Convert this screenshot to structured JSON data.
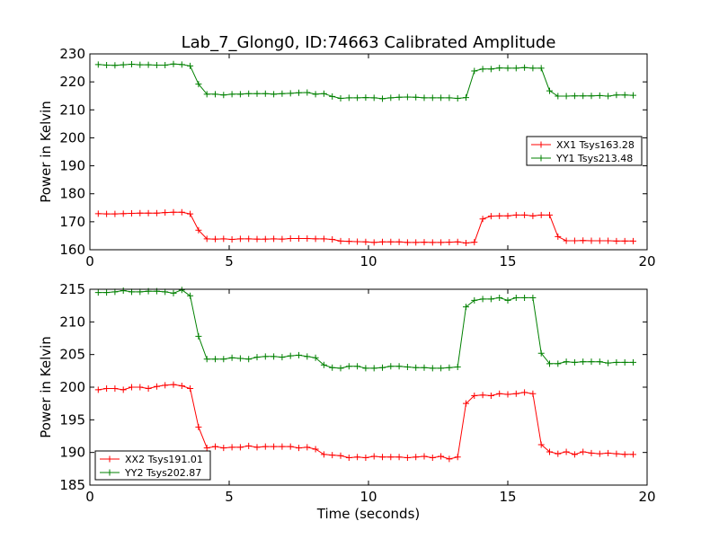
{
  "chart_data": {
    "type": "line",
    "title": "Lab_7_Glong0, ID:74663 Calibrated Amplitude",
    "colors": {
      "red": "#ff0000",
      "green": "#008000"
    },
    "panels": [
      {
        "ylabel": "Power in Kelvin",
        "xlabel": "",
        "xlim": [
          0,
          20
        ],
        "ylim": [
          160,
          230
        ],
        "xticks": [
          0,
          5,
          10,
          15,
          20
        ],
        "yticks": [
          160,
          170,
          180,
          190,
          200,
          210,
          220,
          230
        ],
        "legend_position": "center-right",
        "series": [
          {
            "name": "XX1 Tsys163.28",
            "color": "#ff0000",
            "x": [
              0.3,
              0.6,
              0.9,
              1.2,
              1.5,
              1.8,
              2.1,
              2.4,
              2.7,
              3.0,
              3.3,
              3.6,
              3.9,
              4.2,
              4.5,
              4.8,
              5.1,
              5.4,
              5.7,
              6.0,
              6.3,
              6.6,
              6.9,
              7.2,
              7.5,
              7.8,
              8.1,
              8.4,
              8.7,
              9.0,
              9.3,
              9.6,
              9.9,
              10.2,
              10.5,
              10.8,
              11.1,
              11.4,
              11.7,
              12.0,
              12.3,
              12.6,
              12.9,
              13.2,
              13.5,
              13.8,
              14.1,
              14.4,
              14.7,
              15.0,
              15.3,
              15.6,
              15.9,
              16.2,
              16.5,
              16.8,
              17.1,
              17.4,
              17.7,
              18.0,
              18.3,
              18.6,
              18.9,
              19.2,
              19.5
            ],
            "y": [
              172.9,
              172.8,
              172.8,
              172.9,
              173.0,
              173.1,
              173.1,
              173.1,
              173.3,
              173.4,
              173.4,
              172.8,
              167.0,
              163.9,
              163.8,
              163.9,
              163.7,
              163.9,
              163.9,
              163.8,
              163.8,
              163.9,
              163.8,
              164.0,
              164.0,
              164.0,
              163.9,
              163.9,
              163.7,
              163.1,
              163.0,
              162.9,
              162.8,
              162.6,
              162.8,
              162.8,
              162.8,
              162.6,
              162.6,
              162.7,
              162.6,
              162.6,
              162.7,
              162.8,
              162.4,
              162.7,
              171.0,
              172.0,
              172.1,
              172.1,
              172.4,
              172.4,
              172.1,
              172.4,
              172.4,
              164.7,
              163.2,
              163.2,
              163.3,
              163.2,
              163.2,
              163.2,
              163.1,
              163.1,
              163.1
            ]
          },
          {
            "name": "YY1 Tsys213.48",
            "color": "#008000",
            "x": [
              0.3,
              0.6,
              0.9,
              1.2,
              1.5,
              1.8,
              2.1,
              2.4,
              2.7,
              3.0,
              3.3,
              3.6,
              3.9,
              4.2,
              4.5,
              4.8,
              5.1,
              5.4,
              5.7,
              6.0,
              6.3,
              6.6,
              6.9,
              7.2,
              7.5,
              7.8,
              8.1,
              8.4,
              8.7,
              9.0,
              9.3,
              9.6,
              9.9,
              10.2,
              10.5,
              10.8,
              11.1,
              11.4,
              11.7,
              12.0,
              12.3,
              12.6,
              12.9,
              13.2,
              13.5,
              13.8,
              14.1,
              14.4,
              14.7,
              15.0,
              15.3,
              15.6,
              15.9,
              16.2,
              16.5,
              16.8,
              17.1,
              17.4,
              17.7,
              18.0,
              18.3,
              18.6,
              18.9,
              19.2,
              19.5
            ],
            "y": [
              226.2,
              226.0,
              225.9,
              226.1,
              226.3,
              226.1,
              226.1,
              226.0,
              226.0,
              226.4,
              226.2,
              225.7,
              219.2,
              215.6,
              215.6,
              215.3,
              215.6,
              215.6,
              215.8,
              215.8,
              215.8,
              215.6,
              215.8,
              215.9,
              216.1,
              216.2,
              215.6,
              215.8,
              214.8,
              214.1,
              214.3,
              214.3,
              214.4,
              214.3,
              214.0,
              214.3,
              214.5,
              214.6,
              214.5,
              214.3,
              214.3,
              214.3,
              214.3,
              214.1,
              214.4,
              223.9,
              224.6,
              224.6,
              225.0,
              224.9,
              224.9,
              225.1,
              224.9,
              224.9,
              216.8,
              214.9,
              214.9,
              215.0,
              215.0,
              215.0,
              215.1,
              214.9,
              215.3,
              215.3,
              215.2
            ]
          }
        ]
      },
      {
        "ylabel": "Power in Kelvin",
        "xlabel": "Time (seconds)",
        "xlim": [
          0,
          20
        ],
        "ylim": [
          185,
          215
        ],
        "xticks": [
          0,
          5,
          10,
          15,
          20
        ],
        "yticks": [
          185,
          190,
          195,
          200,
          205,
          210,
          215
        ],
        "legend_position": "lower-left",
        "series": [
          {
            "name": "XX2 Tsys191.01",
            "color": "#ff0000",
            "x": [
              0.3,
              0.6,
              0.9,
              1.2,
              1.5,
              1.8,
              2.1,
              2.4,
              2.7,
              3.0,
              3.3,
              3.6,
              3.9,
              4.2,
              4.5,
              4.8,
              5.1,
              5.4,
              5.7,
              6.0,
              6.3,
              6.6,
              6.9,
              7.2,
              7.5,
              7.8,
              8.1,
              8.4,
              8.7,
              9.0,
              9.3,
              9.6,
              9.9,
              10.2,
              10.5,
              10.8,
              11.1,
              11.4,
              11.7,
              12.0,
              12.3,
              12.6,
              12.9,
              13.2,
              13.5,
              13.8,
              14.1,
              14.4,
              14.7,
              15.0,
              15.3,
              15.6,
              15.9,
              16.2,
              16.5,
              16.8,
              17.1,
              17.4,
              17.7,
              18.0,
              18.3,
              18.6,
              18.9,
              19.2,
              19.5
            ],
            "y": [
              199.6,
              199.8,
              199.8,
              199.6,
              200.0,
              200.0,
              199.8,
              200.1,
              200.3,
              200.4,
              200.2,
              199.8,
              193.9,
              190.7,
              190.9,
              190.7,
              190.8,
              190.8,
              191.0,
              190.8,
              190.9,
              190.9,
              190.9,
              190.9,
              190.7,
              190.8,
              190.5,
              189.7,
              189.6,
              189.5,
              189.2,
              189.3,
              189.2,
              189.4,
              189.3,
              189.3,
              189.3,
              189.2,
              189.3,
              189.4,
              189.2,
              189.4,
              189.0,
              189.3,
              197.5,
              198.7,
              198.8,
              198.7,
              199.0,
              198.9,
              199.0,
              199.2,
              199.0,
              191.2,
              190.1,
              189.8,
              190.1,
              189.7,
              190.1,
              189.9,
              189.8,
              189.9,
              189.8,
              189.7,
              189.7
            ]
          },
          {
            "name": "YY2 Tsys202.87",
            "color": "#008000",
            "x": [
              0.3,
              0.6,
              0.9,
              1.2,
              1.5,
              1.8,
              2.1,
              2.4,
              2.7,
              3.0,
              3.3,
              3.6,
              3.9,
              4.2,
              4.5,
              4.8,
              5.1,
              5.4,
              5.7,
              6.0,
              6.3,
              6.6,
              6.9,
              7.2,
              7.5,
              7.8,
              8.1,
              8.4,
              8.7,
              9.0,
              9.3,
              9.6,
              9.9,
              10.2,
              10.5,
              10.8,
              11.1,
              11.4,
              11.7,
              12.0,
              12.3,
              12.6,
              12.9,
              13.2,
              13.5,
              13.8,
              14.1,
              14.4,
              14.7,
              15.0,
              15.3,
              15.6,
              15.9,
              16.2,
              16.5,
              16.8,
              17.1,
              17.4,
              17.7,
              18.0,
              18.3,
              18.6,
              18.9,
              19.2,
              19.5
            ],
            "y": [
              214.5,
              214.5,
              214.6,
              214.8,
              214.6,
              214.6,
              214.7,
              214.7,
              214.6,
              214.4,
              214.9,
              214.0,
              207.8,
              204.3,
              204.3,
              204.3,
              204.5,
              204.4,
              204.3,
              204.6,
              204.7,
              204.7,
              204.6,
              204.8,
              204.9,
              204.7,
              204.5,
              203.4,
              203.0,
              202.9,
              203.2,
              203.2,
              202.9,
              202.9,
              203.0,
              203.2,
              203.2,
              203.1,
              203.0,
              203.0,
              202.9,
              202.9,
              203.0,
              203.1,
              212.3,
              213.3,
              213.5,
              213.5,
              213.7,
              213.3,
              213.7,
              213.7,
              213.7,
              205.2,
              203.6,
              203.6,
              203.9,
              203.8,
              203.9,
              203.9,
              203.9,
              203.7,
              203.8,
              203.8,
              203.8
            ]
          }
        ]
      }
    ]
  }
}
